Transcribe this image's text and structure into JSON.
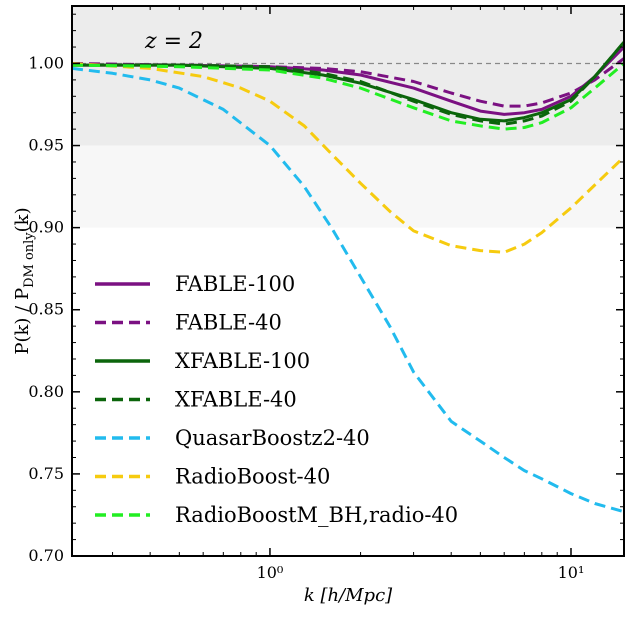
{
  "chart_data": {
    "type": "line",
    "title": "",
    "annotation": "z = 2",
    "xlabel": "k  [h/Mpc]",
    "ylabel": "P(k) / P_DM only(k)",
    "xscale": "log",
    "xlim": [
      0.22,
      15
    ],
    "ylim": [
      0.7,
      1.035
    ],
    "xticks": [
      {
        "value": 1,
        "label": "10⁰"
      },
      {
        "value": 10,
        "label": "10¹"
      }
    ],
    "yticks": [
      {
        "value": 0.7,
        "label": "0.70"
      },
      {
        "value": 0.75,
        "label": "0.75"
      },
      {
        "value": 0.8,
        "label": "0.80"
      },
      {
        "value": 0.85,
        "label": "0.85"
      },
      {
        "value": 0.9,
        "label": "0.90"
      },
      {
        "value": 0.95,
        "label": "0.95"
      },
      {
        "value": 1.0,
        "label": "1.00"
      }
    ],
    "reference_line": 1.0,
    "shaded_bands": [
      {
        "ymin": 0.95,
        "ymax": 1.035,
        "color": "#ececec"
      },
      {
        "ymin": 0.9,
        "ymax": 0.95,
        "color": "#f7f7f7"
      }
    ],
    "legend_position": "bottom-left",
    "series": [
      {
        "name": "FABLE-100",
        "color": "#7b1182",
        "dash": "solid",
        "x": [
          0.22,
          0.5,
          1.0,
          1.5,
          2.0,
          3.0,
          4.0,
          5.0,
          6.0,
          7.0,
          8.0,
          10.0,
          12.0,
          15.0
        ],
        "y": [
          0.999,
          0.999,
          0.998,
          0.996,
          0.993,
          0.985,
          0.977,
          0.971,
          0.969,
          0.97,
          0.972,
          0.98,
          0.992,
          1.01
        ]
      },
      {
        "name": "FABLE-40",
        "color": "#7b1182",
        "dash": "dashed",
        "x": [
          0.22,
          0.5,
          1.0,
          1.5,
          2.0,
          3.0,
          4.0,
          5.0,
          6.0,
          7.0,
          8.0,
          10.0,
          12.0,
          15.0
        ],
        "y": [
          1.0,
          0.999,
          0.998,
          0.997,
          0.995,
          0.989,
          0.982,
          0.977,
          0.974,
          0.974,
          0.976,
          0.982,
          0.99,
          1.003
        ]
      },
      {
        "name": "XFABLE-100",
        "color": "#0b650b",
        "dash": "solid",
        "x": [
          0.22,
          0.5,
          1.0,
          1.5,
          2.0,
          3.0,
          4.0,
          5.0,
          6.0,
          7.0,
          8.0,
          10.0,
          12.0,
          15.0
        ],
        "y": [
          0.999,
          0.999,
          0.997,
          0.993,
          0.988,
          0.978,
          0.97,
          0.966,
          0.965,
          0.967,
          0.97,
          0.978,
          0.992,
          1.013
        ]
      },
      {
        "name": "XFABLE-40",
        "color": "#0b650b",
        "dash": "dashed",
        "x": [
          0.22,
          0.5,
          1.0,
          1.5,
          2.0,
          3.0,
          4.0,
          5.0,
          6.0,
          7.0,
          8.0,
          10.0,
          12.0,
          15.0
        ],
        "y": [
          0.999,
          0.999,
          0.998,
          0.994,
          0.989,
          0.977,
          0.969,
          0.965,
          0.963,
          0.965,
          0.968,
          0.977,
          0.992,
          1.013
        ]
      },
      {
        "name": "QuasarBoostz2-40",
        "color": "#22bbee",
        "dash": "dashed",
        "x": [
          0.22,
          0.3,
          0.4,
          0.5,
          0.7,
          1.0,
          1.3,
          1.6,
          2.0,
          2.5,
          3.0,
          4.0,
          5.0,
          6.0,
          7.0,
          8.0,
          10.0,
          12.0,
          15.0
        ],
        "y": [
          0.997,
          0.994,
          0.99,
          0.985,
          0.972,
          0.95,
          0.925,
          0.9,
          0.87,
          0.84,
          0.812,
          0.782,
          0.77,
          0.76,
          0.752,
          0.747,
          0.738,
          0.732,
          0.727
        ]
      },
      {
        "name": "RadioBoost-40",
        "color": "#f6cb0f",
        "dash": "dashed",
        "x": [
          0.22,
          0.4,
          0.6,
          0.8,
          1.0,
          1.3,
          1.6,
          2.0,
          2.5,
          3.0,
          4.0,
          5.0,
          6.0,
          7.0,
          8.0,
          10.0,
          12.0,
          15.0
        ],
        "y": [
          1.0,
          0.997,
          0.992,
          0.985,
          0.977,
          0.962,
          0.945,
          0.927,
          0.91,
          0.898,
          0.889,
          0.886,
          0.885,
          0.89,
          0.897,
          0.912,
          0.926,
          0.943
        ]
      },
      {
        "name": "RadioBoostM_BH,radio-40",
        "color": "#22ee22",
        "dash": "dashed",
        "x": [
          0.22,
          0.5,
          1.0,
          1.5,
          2.0,
          3.0,
          4.0,
          5.0,
          6.0,
          7.0,
          8.0,
          10.0,
          12.0,
          15.0
        ],
        "y": [
          0.999,
          0.998,
          0.996,
          0.991,
          0.985,
          0.973,
          0.965,
          0.962,
          0.96,
          0.961,
          0.964,
          0.973,
          0.985,
          1.0
        ]
      }
    ],
    "legend": [
      {
        "label": "FABLE-100"
      },
      {
        "label": "FABLE-40"
      },
      {
        "label": "XFABLE-100"
      },
      {
        "label": "XFABLE-40"
      },
      {
        "label": "QuasarBoostz2-40"
      },
      {
        "label": "RadioBoost-40"
      },
      {
        "label": "RadioBoostM_BH,radio-40"
      }
    ]
  }
}
